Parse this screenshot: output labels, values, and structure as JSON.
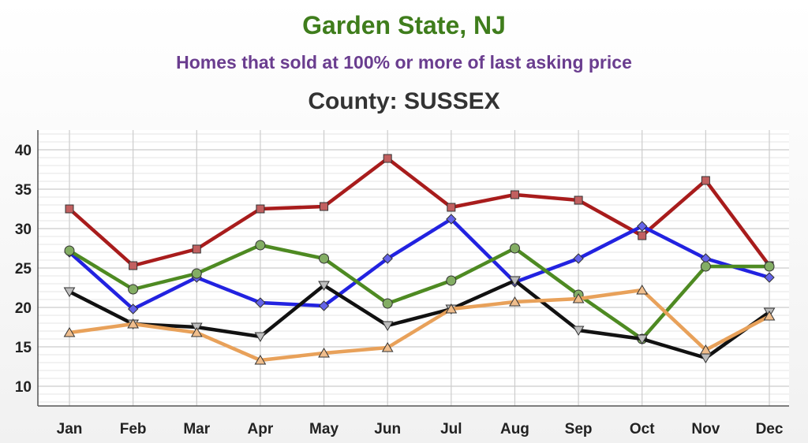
{
  "header": {
    "title": "Garden State, NJ",
    "subtitle": "Homes that sold at 100% or more of last asking price",
    "county": "County: SUSSEX"
  },
  "colors": {
    "title": "#3f7d1c",
    "subtitle": "#6a3d8f",
    "county": "#333333",
    "grid": "#cccccc",
    "axis": "#555555"
  },
  "chart_data": {
    "type": "line",
    "categories": [
      "Jan",
      "Feb",
      "Mar",
      "Apr",
      "May",
      "Jun",
      "Jul",
      "Aug",
      "Sep",
      "Oct",
      "Nov",
      "Dec"
    ],
    "ylim": [
      7.5,
      42.5
    ],
    "yticks": [
      10,
      15,
      20,
      25,
      30,
      35,
      40
    ],
    "grid": true,
    "legend": "none",
    "series": [
      {
        "color": "#a81c1c",
        "marker": "square",
        "values": [
          32.5,
          25.3,
          27.4,
          32.5,
          32.8,
          38.9,
          32.7,
          34.3,
          33.6,
          29.1,
          36.1,
          25.3
        ]
      },
      {
        "color": "#2222e0",
        "marker": "diamond",
        "values": [
          27.0,
          19.8,
          23.8,
          20.6,
          20.2,
          26.2,
          31.2,
          23.2,
          26.2,
          30.3,
          26.2,
          23.8
        ]
      },
      {
        "color": "#4e8a22",
        "marker": "circle",
        "values": [
          27.2,
          22.3,
          24.3,
          27.9,
          26.2,
          20.5,
          23.4,
          27.5,
          21.6,
          16.0,
          25.2,
          25.2
        ]
      },
      {
        "color": "#111111",
        "marker": "triangle-down",
        "values": [
          22.0,
          17.9,
          17.5,
          16.3,
          22.8,
          17.7,
          19.8,
          23.4,
          17.1,
          16.0,
          13.6,
          19.4
        ]
      },
      {
        "color": "#e8a15a",
        "marker": "triangle-up",
        "values": [
          16.8,
          17.9,
          16.8,
          13.3,
          14.2,
          14.9,
          19.8,
          20.7,
          21.1,
          22.2,
          14.6,
          18.9
        ]
      }
    ]
  }
}
